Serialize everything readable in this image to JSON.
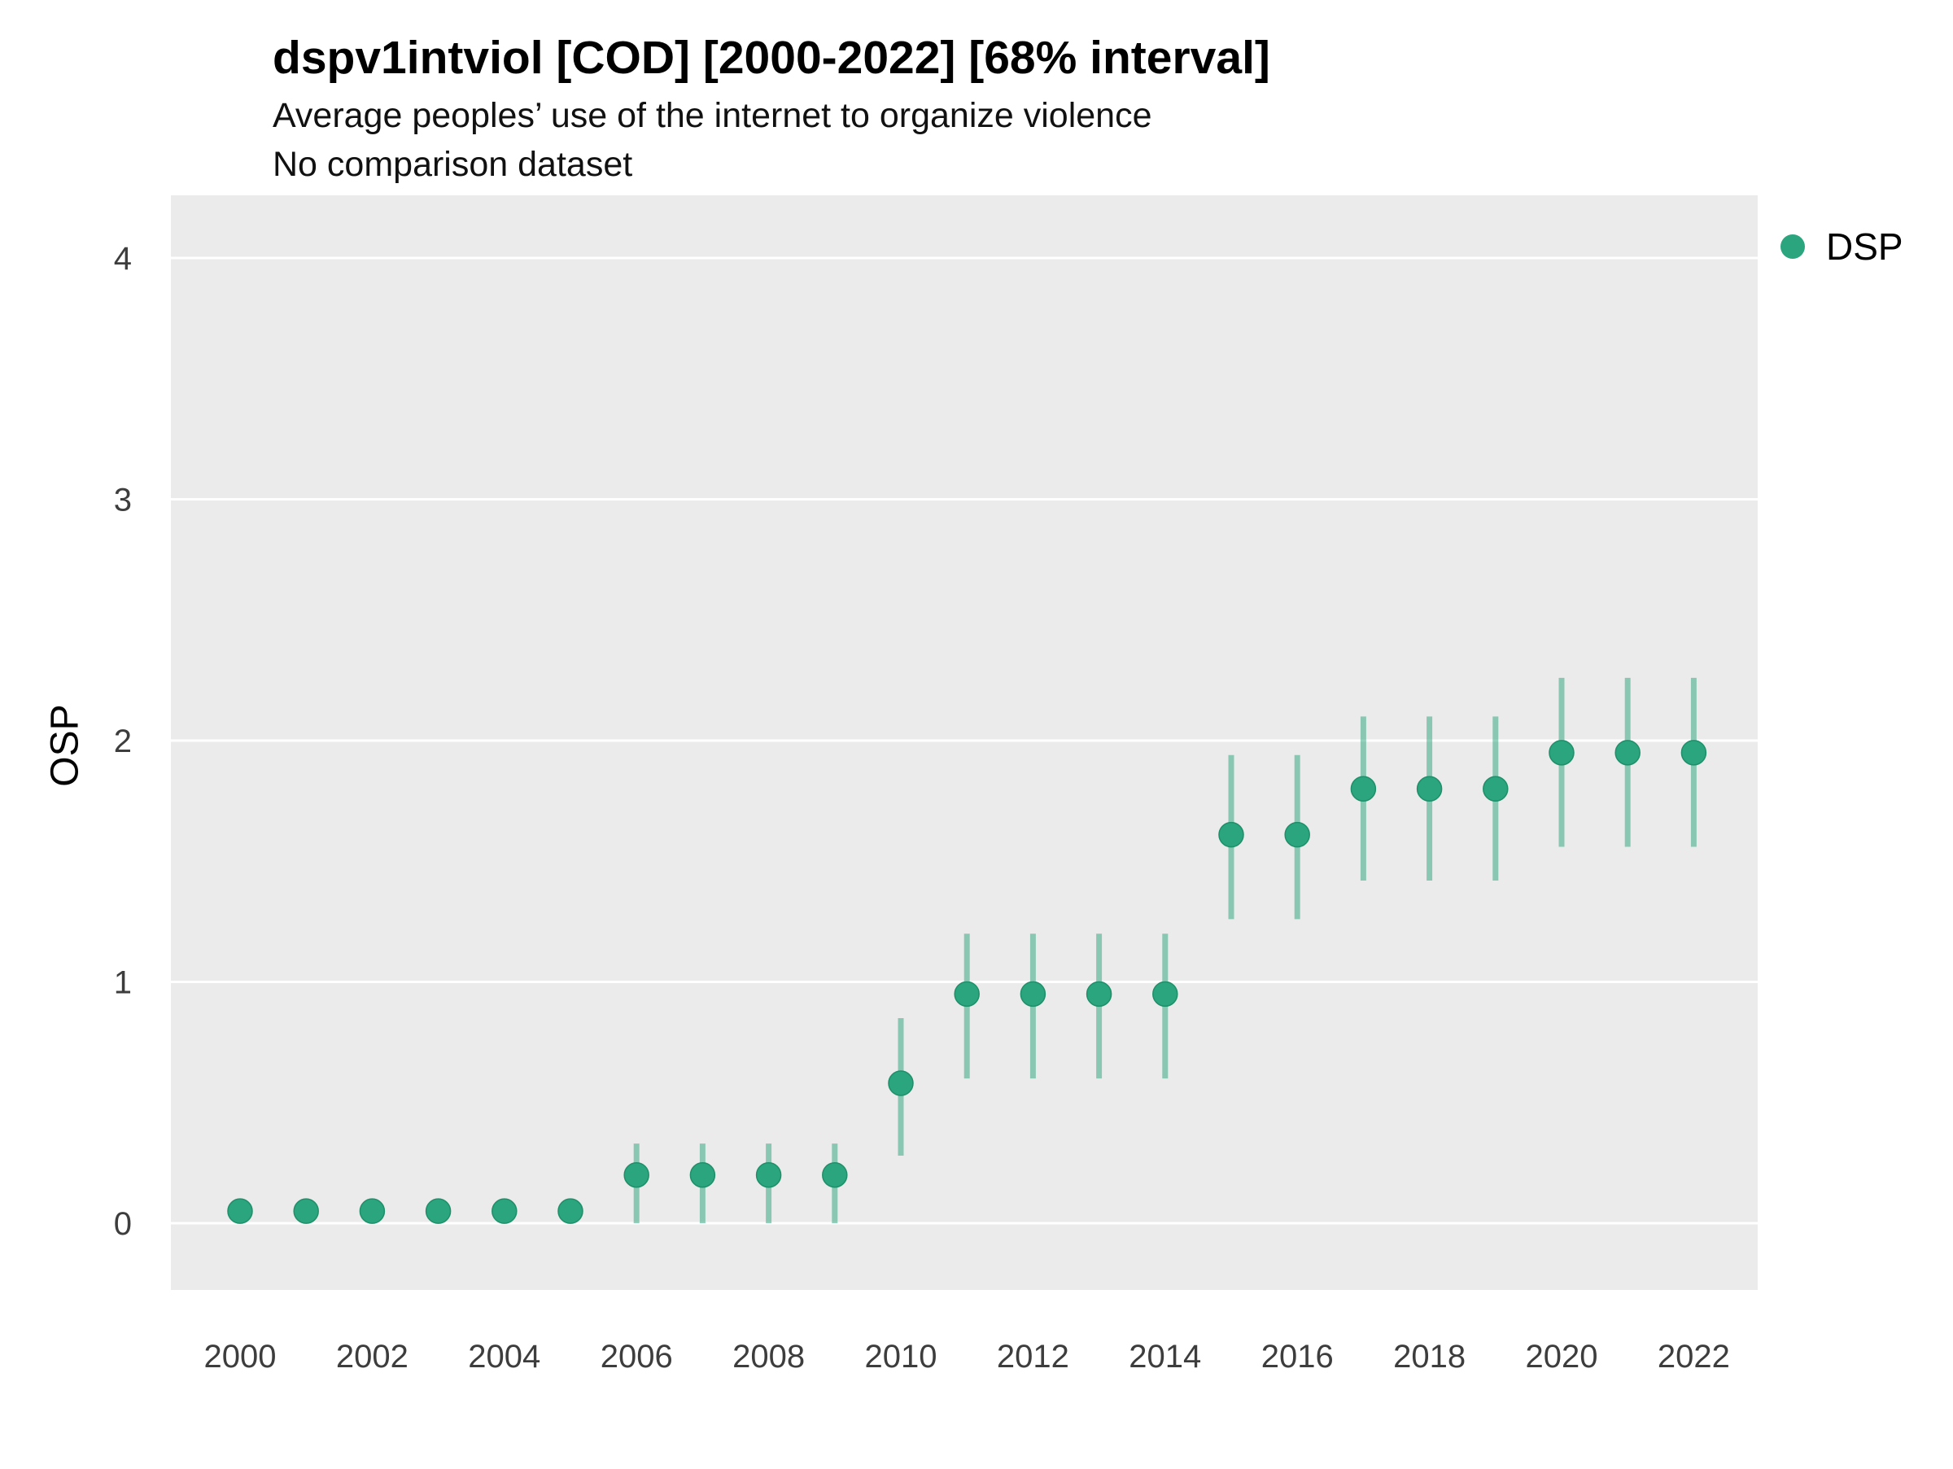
{
  "header": {
    "title": "dspv1intviol [COD] [2000-2022] [68% interval]",
    "subtitle": "Average peoples’ use of the internet to organize violence",
    "subtitle2": "No comparison dataset"
  },
  "legend": {
    "items": [
      {
        "label": "DSP",
        "color": "#2BA57D"
      }
    ]
  },
  "chart_data": {
    "type": "scatter",
    "title": "dspv1intviol [COD] [2000-2022] [68% interval]",
    "subtitle": "Average peoples’ use of the internet to organize violence",
    "note": "No comparison dataset",
    "xlabel": "",
    "ylabel": "OSP",
    "interval": "68%",
    "legend_position": "right",
    "grid": "horizontal-major",
    "panel_bg": "#EBEBEB",
    "gridline_color": "#FFFFFF",
    "point_color": "#2BA57D",
    "tick_label_color": "#3d3d3d",
    "x_ticks": [
      2000,
      2002,
      2004,
      2006,
      2008,
      2010,
      2012,
      2014,
      2016,
      2018,
      2020,
      2022
    ],
    "y_ticks": [
      0,
      1,
      2,
      3,
      4
    ],
    "xlim": [
      1999,
      2023
    ],
    "ylim": [
      -0.28,
      4.26
    ],
    "series": [
      {
        "name": "DSP",
        "color": "#2BA57D",
        "points": [
          {
            "year": 2000,
            "est": 0.05,
            "lo": 0.05,
            "hi": 0.05
          },
          {
            "year": 2001,
            "est": 0.05,
            "lo": 0.05,
            "hi": 0.05
          },
          {
            "year": 2002,
            "est": 0.05,
            "lo": 0.05,
            "hi": 0.05
          },
          {
            "year": 2003,
            "est": 0.05,
            "lo": 0.05,
            "hi": 0.05
          },
          {
            "year": 2004,
            "est": 0.05,
            "lo": 0.05,
            "hi": 0.05
          },
          {
            "year": 2005,
            "est": 0.05,
            "lo": 0.05,
            "hi": 0.05
          },
          {
            "year": 2006,
            "est": 0.2,
            "lo": 0.0,
            "hi": 0.33
          },
          {
            "year": 2007,
            "est": 0.2,
            "lo": 0.0,
            "hi": 0.33
          },
          {
            "year": 2008,
            "est": 0.2,
            "lo": 0.0,
            "hi": 0.33
          },
          {
            "year": 2009,
            "est": 0.2,
            "lo": 0.0,
            "hi": 0.33
          },
          {
            "year": 2010,
            "est": 0.58,
            "lo": 0.28,
            "hi": 0.85
          },
          {
            "year": 2011,
            "est": 0.95,
            "lo": 0.6,
            "hi": 1.2
          },
          {
            "year": 2012,
            "est": 0.95,
            "lo": 0.6,
            "hi": 1.2
          },
          {
            "year": 2013,
            "est": 0.95,
            "lo": 0.6,
            "hi": 1.2
          },
          {
            "year": 2014,
            "est": 0.95,
            "lo": 0.6,
            "hi": 1.2
          },
          {
            "year": 2015,
            "est": 1.61,
            "lo": 1.26,
            "hi": 1.94
          },
          {
            "year": 2016,
            "est": 1.61,
            "lo": 1.26,
            "hi": 1.94
          },
          {
            "year": 2017,
            "est": 1.8,
            "lo": 1.42,
            "hi": 2.1
          },
          {
            "year": 2018,
            "est": 1.8,
            "lo": 1.42,
            "hi": 2.1
          },
          {
            "year": 2019,
            "est": 1.8,
            "lo": 1.42,
            "hi": 2.1
          },
          {
            "year": 2020,
            "est": 1.95,
            "lo": 1.56,
            "hi": 2.26
          },
          {
            "year": 2021,
            "est": 1.95,
            "lo": 1.56,
            "hi": 2.26
          },
          {
            "year": 2022,
            "est": 1.95,
            "lo": 1.56,
            "hi": 2.26
          }
        ]
      }
    ]
  }
}
